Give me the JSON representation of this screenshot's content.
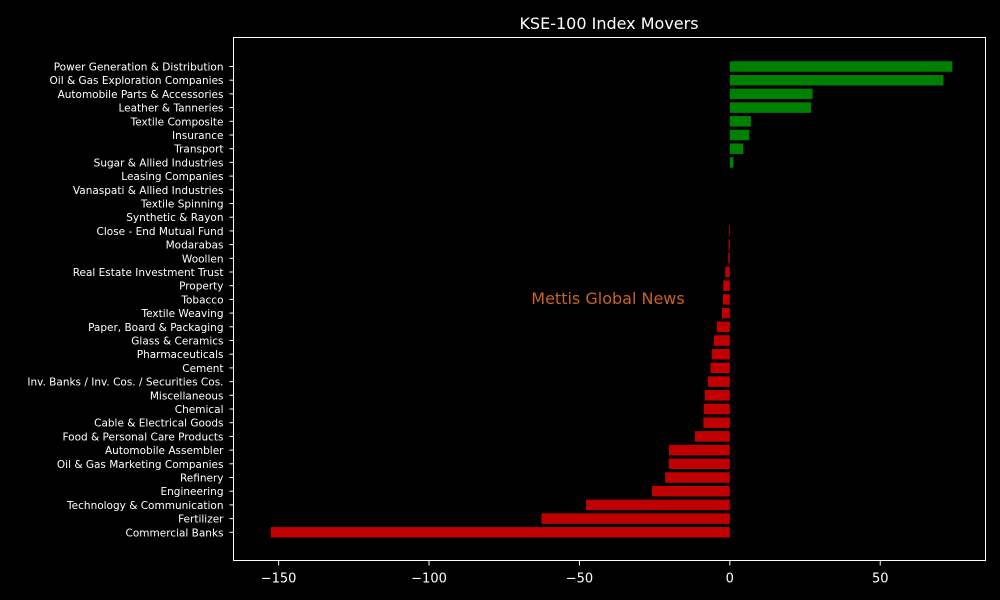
{
  "chart_data": {
    "type": "bar",
    "orientation": "horizontal",
    "title": "KSE-100 Index Movers",
    "xlabel": "",
    "ylabel": "",
    "xlim": [
      -165,
      85
    ],
    "xticks": [
      -150,
      -100,
      -50,
      0,
      50
    ],
    "xtick_labels": [
      "−150",
      "−100",
      "−50",
      "0",
      "50"
    ],
    "grid": false,
    "positive_color": "#008000",
    "negative_color": "#c00000",
    "background_color": "#000000",
    "watermark": {
      "text": "Mettis Global News",
      "color": "#c8641e"
    },
    "categories": [
      "Power Generation & Distribution",
      "Oil & Gas Exploration Companies",
      "Automobile Parts & Accessories",
      "Leather & Tanneries",
      "Textile Composite",
      "Insurance",
      "Transport",
      "Sugar & Allied Industries",
      "Leasing Companies",
      "Vanaspati & Allied Industries",
      "Textile Spinning",
      "Synthetic & Rayon",
      "Close - End Mutual Fund",
      "Modarabas",
      "Woollen",
      "Real Estate Investment Trust",
      "Property",
      "Tobacco",
      "Textile Weaving",
      "Paper, Board & Packaging",
      "Glass & Ceramics",
      "Pharmaceuticals",
      "Cement",
      "Inv. Banks / Inv. Cos. / Securities Cos.",
      "Miscellaneous",
      "Chemical",
      "Cable & Electrical Goods",
      "Food & Personal Care Products",
      "Automobile Assembler",
      "Oil & Gas Marketing Companies",
      "Refinery",
      "Engineering",
      "Technology & Communication",
      "Fertilizer",
      "Commercial Banks"
    ],
    "values": [
      74,
      71,
      27.5,
      27,
      7,
      6.5,
      4.5,
      1.2,
      0,
      0,
      0,
      0,
      -0.3,
      -0.4,
      -0.5,
      -1.5,
      -2.2,
      -2.3,
      -2.6,
      -4.3,
      -5.3,
      -6,
      -6.4,
      -7.3,
      -8.3,
      -8.7,
      -8.8,
      -11.6,
      -20.2,
      -20.3,
      -21.5,
      -25.9,
      -47.8,
      -62.6,
      -152.6
    ]
  }
}
